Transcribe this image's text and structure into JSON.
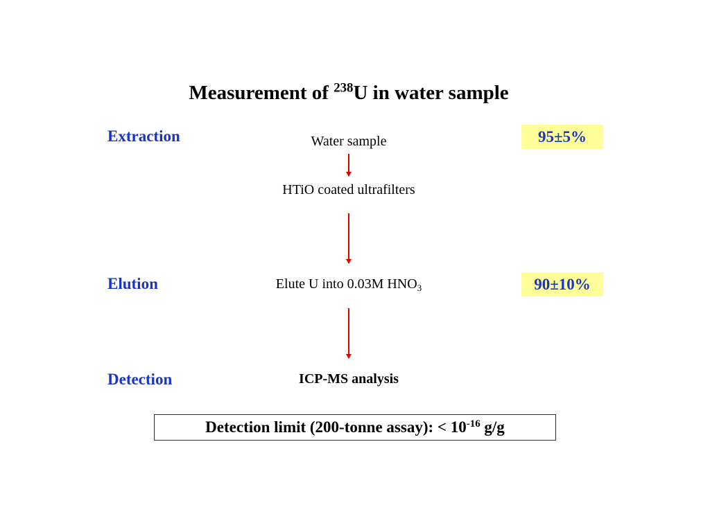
{
  "title": {
    "pre": "Measurement of ",
    "sup": "238",
    "post": "U in water sample"
  },
  "stages": [
    {
      "label": "Extraction",
      "efficiency": "95±5%"
    },
    {
      "label": "Elution",
      "efficiency": "90±10%"
    },
    {
      "label": "Detection"
    }
  ],
  "steps": [
    {
      "text": "Water sample"
    },
    {
      "text": "HTiO coated ultrafilters"
    },
    {
      "pre": "Elute U into 0.03M HNO",
      "sub": "3"
    },
    {
      "text": "ICP-MS analysis"
    }
  ],
  "footer": {
    "pre": "Detection limit (200-tonne assay): < 10",
    "sup": "-16",
    "post": " g/g"
  }
}
